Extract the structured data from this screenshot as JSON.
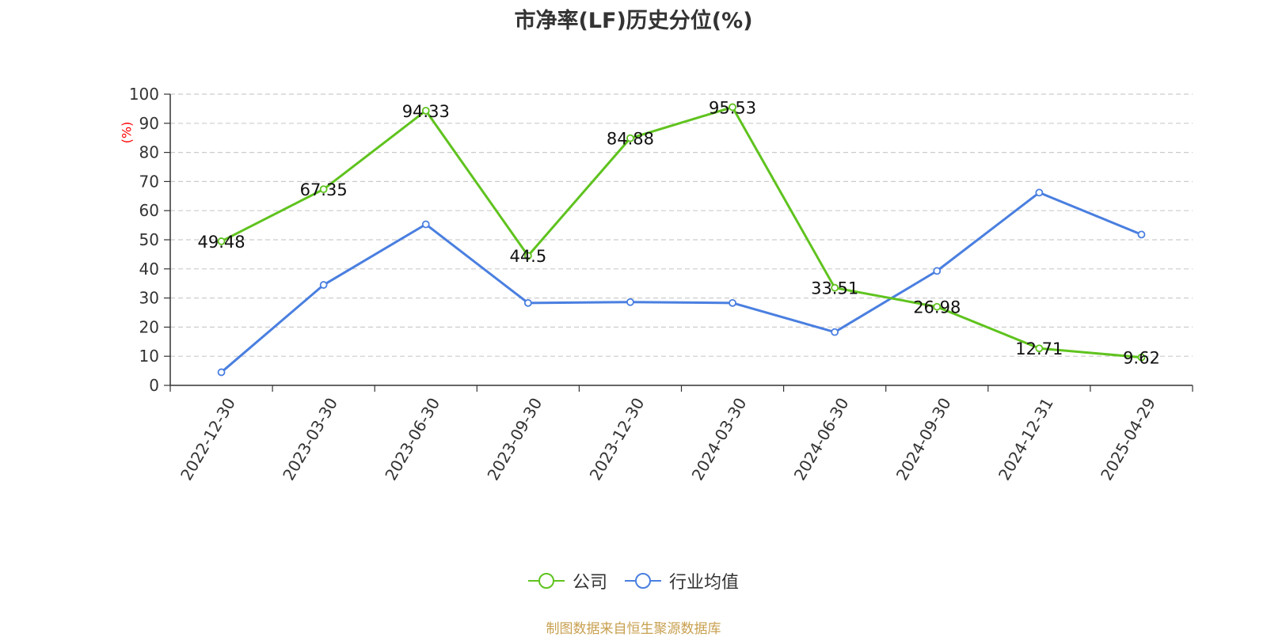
{
  "title": "市净率(LF)历史分位(%)",
  "source": "制图数据来自恒生聚源数据库",
  "chart_data": {
    "type": "line",
    "title": "市净率(LF)历史分位(%)",
    "ylabel": "(%)",
    "ylim": [
      0,
      100
    ],
    "yticks": [
      0,
      10,
      20,
      30,
      40,
      50,
      60,
      70,
      80,
      90,
      100
    ],
    "grid": true,
    "legend_position": "bottom",
    "categories": [
      "2022-12-30",
      "2023-03-30",
      "2023-06-30",
      "2023-09-30",
      "2023-12-30",
      "2024-03-30",
      "2024-06-30",
      "2024-09-30",
      "2024-12-31",
      "2025-04-29"
    ],
    "series": [
      {
        "name": "公司",
        "color": "#5fc31e",
        "show_labels": true,
        "values": [
          49.48,
          67.35,
          94.33,
          44.5,
          84.88,
          95.53,
          33.51,
          26.98,
          12.71,
          9.62
        ]
      },
      {
        "name": "行业均值",
        "color": "#4a7fe0",
        "show_labels": false,
        "values": [
          4.5,
          34.5,
          55.3,
          28.3,
          28.6,
          28.3,
          18.3,
          39.3,
          66.2,
          51.8
        ]
      }
    ]
  }
}
